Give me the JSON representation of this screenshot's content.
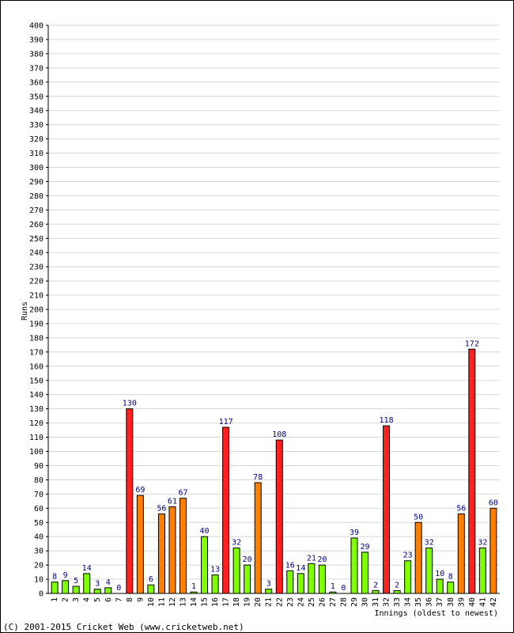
{
  "chart_data": {
    "type": "bar",
    "title": "",
    "xlabel": "Innings (oldest to newest)",
    "ylabel": "Runs",
    "ylim": [
      0,
      400
    ],
    "ytick_step": 10,
    "grid": true,
    "categories": [
      "1",
      "2",
      "3",
      "4",
      "5",
      "6",
      "7",
      "8",
      "9",
      "10",
      "11",
      "12",
      "13",
      "14",
      "15",
      "16",
      "17",
      "18",
      "19",
      "20",
      "21",
      "22",
      "23",
      "24",
      "25",
      "26",
      "27",
      "28",
      "29",
      "30",
      "31",
      "32",
      "33",
      "34",
      "35",
      "36",
      "37",
      "38",
      "39",
      "40",
      "41",
      "42"
    ],
    "values": [
      8,
      9,
      5,
      14,
      3,
      4,
      0,
      130,
      69,
      6,
      56,
      61,
      67,
      1,
      40,
      13,
      117,
      32,
      20,
      78,
      3,
      108,
      16,
      14,
      21,
      20,
      1,
      0,
      39,
      29,
      2,
      118,
      2,
      23,
      50,
      32,
      10,
      8,
      56,
      172,
      32,
      60
    ],
    "colors": {
      "under_50": "#80ff00",
      "fifty_plus": "#ff8000",
      "hundred_plus": "#ff2020",
      "value_label": "#000080",
      "grid": "#d8d8d8"
    }
  },
  "footer": {
    "copyright": "(C) 2001-2015 Cricket Web (www.cricketweb.net)"
  }
}
